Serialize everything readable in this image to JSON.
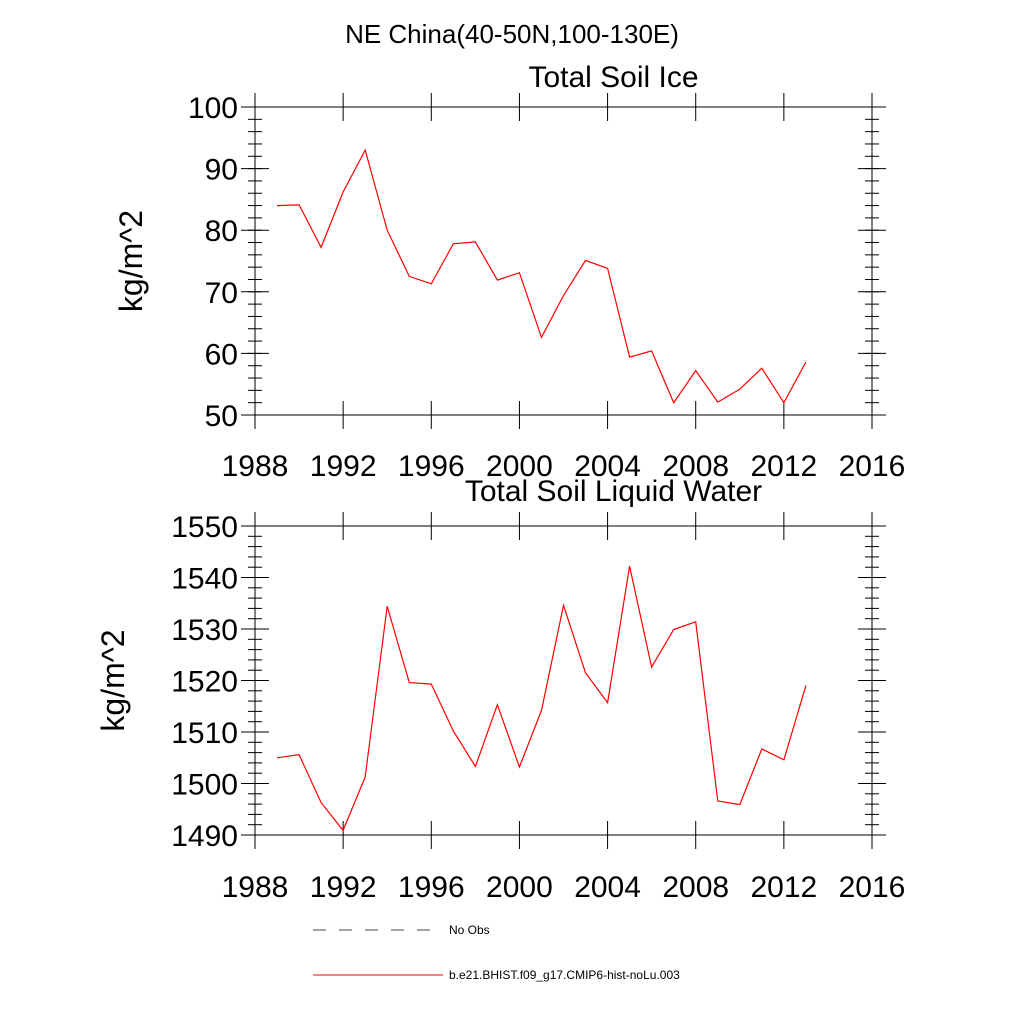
{
  "figure": {
    "suptitle": "NE China(40-50N,100-130E)"
  },
  "colors": {
    "series": "#ff0000",
    "obs": "#44445a",
    "axes": "#000000"
  },
  "chart_data": [
    {
      "type": "line",
      "title": "Total Soil Ice",
      "xlabel": "",
      "ylabel": "kg/m^2",
      "xlim": [
        1988,
        2016
      ],
      "ylim": [
        50,
        100
      ],
      "xticks": [
        1988,
        1992,
        1996,
        2000,
        2004,
        2008,
        2012,
        2016
      ],
      "yticks": [
        50,
        60,
        70,
        80,
        90,
        100
      ],
      "grid": false,
      "series": [
        {
          "name": "b.e21.BHIST.f09_g17.CMIP6-hist-noLu.003",
          "x": [
            1989,
            1990,
            1991,
            1992,
            1993,
            1994,
            1995,
            1996,
            1997,
            1998,
            1999,
            2000,
            2001,
            2002,
            2003,
            2004,
            2005,
            2006,
            2007,
            2008,
            2009,
            2010,
            2011,
            2012,
            2013
          ],
          "values": [
            84.0,
            84.1,
            77.2,
            86.2,
            93.0,
            80.0,
            72.5,
            71.3,
            77.8,
            78.1,
            71.9,
            73.1,
            62.6,
            69.4,
            75.1,
            73.8,
            59.4,
            60.4,
            52.0,
            57.2,
            52.1,
            54.2,
            57.6,
            52.0,
            58.6
          ]
        }
      ]
    },
    {
      "type": "line",
      "title": "Total Soil Liquid Water",
      "xlabel": "",
      "ylabel": "kg/m^2",
      "xlim": [
        1988,
        2016
      ],
      "ylim": [
        1490,
        1550
      ],
      "xticks": [
        1988,
        1992,
        1996,
        2000,
        2004,
        2008,
        2012,
        2016
      ],
      "yticks": [
        1490,
        1500,
        1510,
        1520,
        1530,
        1540,
        1550
      ],
      "grid": false,
      "series": [
        {
          "name": "b.e21.BHIST.f09_g17.CMIP6-hist-noLu.003",
          "x": [
            1989,
            1990,
            1991,
            1992,
            1993,
            1994,
            1995,
            1996,
            1997,
            1998,
            1999,
            2000,
            2001,
            2002,
            2003,
            2004,
            2005,
            2006,
            2007,
            2008,
            2009,
            2010,
            2011,
            2012,
            2013
          ],
          "values": [
            1505.0,
            1505.6,
            1496.3,
            1490.9,
            1501.3,
            1534.4,
            1519.6,
            1519.3,
            1510.2,
            1503.3,
            1515.3,
            1503.2,
            1514.2,
            1534.6,
            1521.5,
            1515.7,
            1542.2,
            1522.6,
            1529.9,
            1531.4,
            1496.6,
            1495.9,
            1506.7,
            1504.6,
            1519.0
          ]
        }
      ]
    }
  ],
  "legend": {
    "items": [
      {
        "label": "No Obs",
        "style": "dashed"
      },
      {
        "label": "b.e21.BHIST.f09_g17.CMIP6-hist-noLu.003",
        "style": "solid"
      }
    ]
  }
}
